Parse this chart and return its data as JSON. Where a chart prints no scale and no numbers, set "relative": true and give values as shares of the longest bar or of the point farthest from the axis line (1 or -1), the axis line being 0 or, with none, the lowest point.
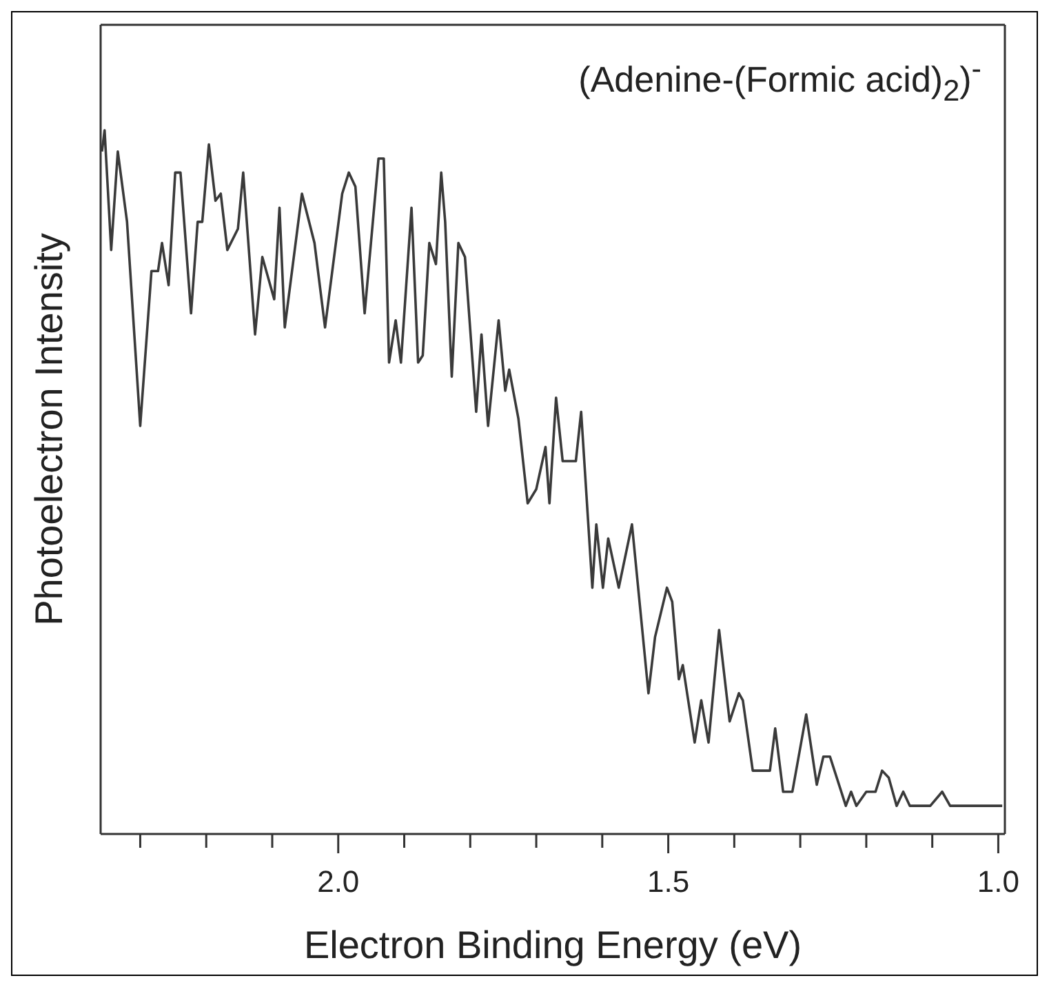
{
  "chart_data": {
    "type": "line",
    "title": "(Adenine-(Formic acid)$_{2}$)$^{-}$",
    "xlabel": "Electron Binding Energy (eV)",
    "ylabel": "Photoelectron Intensity",
    "relative": true,
    "xlim": [
      2.36,
      0.99
    ],
    "xticks": [
      {
        "value": 2.3,
        "label": null
      },
      {
        "value": 2.2,
        "label": null
      },
      {
        "value": 2.1,
        "label": null
      },
      {
        "value": 2.0,
        "label": "2.0"
      },
      {
        "value": 1.9,
        "label": null
      },
      {
        "value": 1.8,
        "label": null
      },
      {
        "value": 1.7,
        "label": null
      },
      {
        "value": 1.6,
        "label": null
      },
      {
        "value": 1.5,
        "label": "1.5"
      },
      {
        "value": 1.4,
        "label": null
      },
      {
        "value": 1.3,
        "label": null
      },
      {
        "value": 1.2,
        "label": null
      },
      {
        "value": 1.1,
        "label": null
      },
      {
        "value": 1.0,
        "label": "1.0"
      }
    ],
    "x": [
      2.358,
      2.354,
      2.344,
      2.334,
      2.32,
      2.3,
      2.283,
      2.273,
      2.267,
      2.257,
      2.247,
      2.239,
      2.223,
      2.213,
      2.206,
      2.196,
      2.186,
      2.178,
      2.168,
      2.152,
      2.144,
      2.126,
      2.115,
      2.097,
      2.089,
      2.081,
      2.055,
      2.036,
      2.02,
      1.994,
      1.984,
      1.974,
      1.96,
      1.939,
      1.931,
      1.923,
      1.913,
      1.905,
      1.889,
      1.879,
      1.872,
      1.862,
      1.852,
      1.844,
      1.838,
      1.828,
      1.818,
      1.808,
      1.791,
      1.783,
      1.773,
      1.757,
      1.747,
      1.741,
      1.727,
      1.713,
      1.7,
      1.686,
      1.68,
      1.67,
      1.66,
      1.64,
      1.632,
      1.615,
      1.609,
      1.599,
      1.591,
      1.575,
      1.555,
      1.53,
      1.52,
      1.502,
      1.494,
      1.484,
      1.478,
      1.46,
      1.45,
      1.439,
      1.423,
      1.407,
      1.393,
      1.387,
      1.372,
      1.346,
      1.338,
      1.326,
      1.312,
      1.291,
      1.275,
      1.265,
      1.255,
      1.231,
      1.223,
      1.215,
      1.2,
      1.186,
      1.176,
      1.166,
      1.154,
      1.144,
      1.134,
      1.103,
      1.085,
      1.073,
      0.994
    ],
    "series": [
      {
        "color": "#3a3a3a",
        "values": [
          0.97,
          1.0,
          0.83,
          0.97,
          0.87,
          0.58,
          0.8,
          0.8,
          0.84,
          0.78,
          0.94,
          0.94,
          0.74,
          0.87,
          0.87,
          0.98,
          0.9,
          0.91,
          0.83,
          0.86,
          0.94,
          0.71,
          0.82,
          0.76,
          0.89,
          0.72,
          0.91,
          0.84,
          0.72,
          0.91,
          0.94,
          0.92,
          0.74,
          0.96,
          0.96,
          0.67,
          0.73,
          0.67,
          0.89,
          0.67,
          0.68,
          0.84,
          0.81,
          0.94,
          0.87,
          0.65,
          0.84,
          0.82,
          0.6,
          0.71,
          0.58,
          0.73,
          0.63,
          0.66,
          0.59,
          0.47,
          0.49,
          0.55,
          0.47,
          0.62,
          0.53,
          0.53,
          0.6,
          0.35,
          0.44,
          0.35,
          0.42,
          0.35,
          0.44,
          0.2,
          0.28,
          0.35,
          0.33,
          0.22,
          0.24,
          0.13,
          0.19,
          0.13,
          0.29,
          0.16,
          0.2,
          0.19,
          0.09,
          0.09,
          0.15,
          0.06,
          0.06,
          0.17,
          0.07,
          0.11,
          0.11,
          0.04,
          0.06,
          0.04,
          0.06,
          0.06,
          0.09,
          0.08,
          0.04,
          0.06,
          0.04,
          0.04,
          0.06,
          0.04,
          0.04
        ]
      }
    ],
    "marker": "none",
    "line_style": "solid"
  }
}
